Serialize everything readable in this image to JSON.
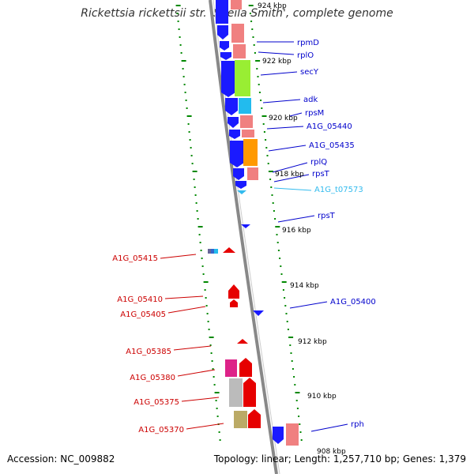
{
  "title": "Rickettsia rickettsii str. 'Sheila Smith', complete genome",
  "accession": "Accession: NC_009882",
  "summary": "Topology: linear; Length: 1,257,710 bp; Genes: 1,379",
  "colors": {
    "forward_strand_gene": "#1a1aff",
    "reverse_strand_gene": "#e60000",
    "right_label": "#0000cc",
    "left_label": "#cc0000",
    "trna_label": "#33bbee",
    "tick": "#008800",
    "backbone": "#888888"
  },
  "kbp_ticks": [
    "924 kbp",
    "922 kbp",
    "920 kbp",
    "918 kbp",
    "916 kbp",
    "914 kbp",
    "912 kbp",
    "910 kbp",
    "908 kbp"
  ],
  "right_genes": [
    "rpmD",
    "rplO",
    "secY",
    "adk",
    "rpsM",
    "A1G_05440",
    "A1G_05435",
    "rplQ",
    "rpsT",
    "A1G_t07573",
    "rpsT",
    "A1G_05400",
    "rph"
  ],
  "left_genes": [
    "A1G_05415",
    "A1G_05410",
    "A1G_05405",
    "A1G_05385",
    "A1G_05380",
    "A1G_05375",
    "A1G_05370"
  ]
}
